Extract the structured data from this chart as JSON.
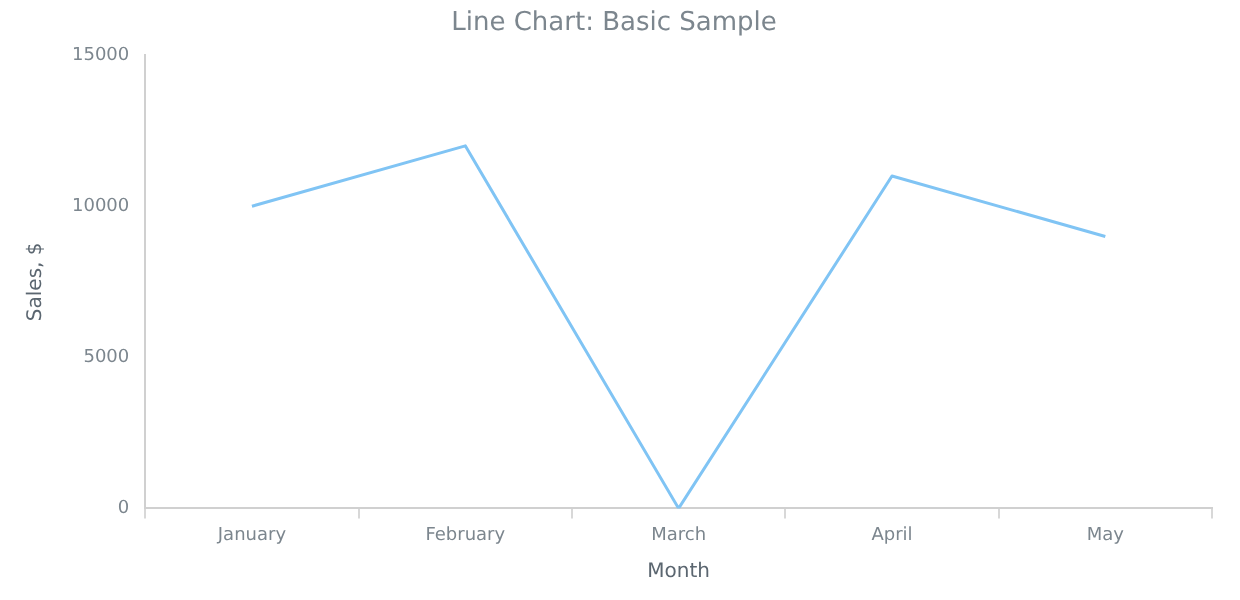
{
  "chart_data": {
    "type": "line",
    "title": "Line Chart: Basic Sample",
    "xlabel": "Month",
    "ylabel": "Sales, $",
    "categories": [
      "January",
      "February",
      "March",
      "April",
      "May"
    ],
    "series": [
      {
        "color": "#80c4f4",
        "values": [
          10000,
          12000,
          0,
          11000,
          9000
        ]
      }
    ],
    "ylim": [
      0,
      15000
    ],
    "yticks": [
      0,
      5000,
      10000,
      15000
    ],
    "grid": false,
    "legend": false,
    "marker": "none",
    "line_style": "solid"
  }
}
